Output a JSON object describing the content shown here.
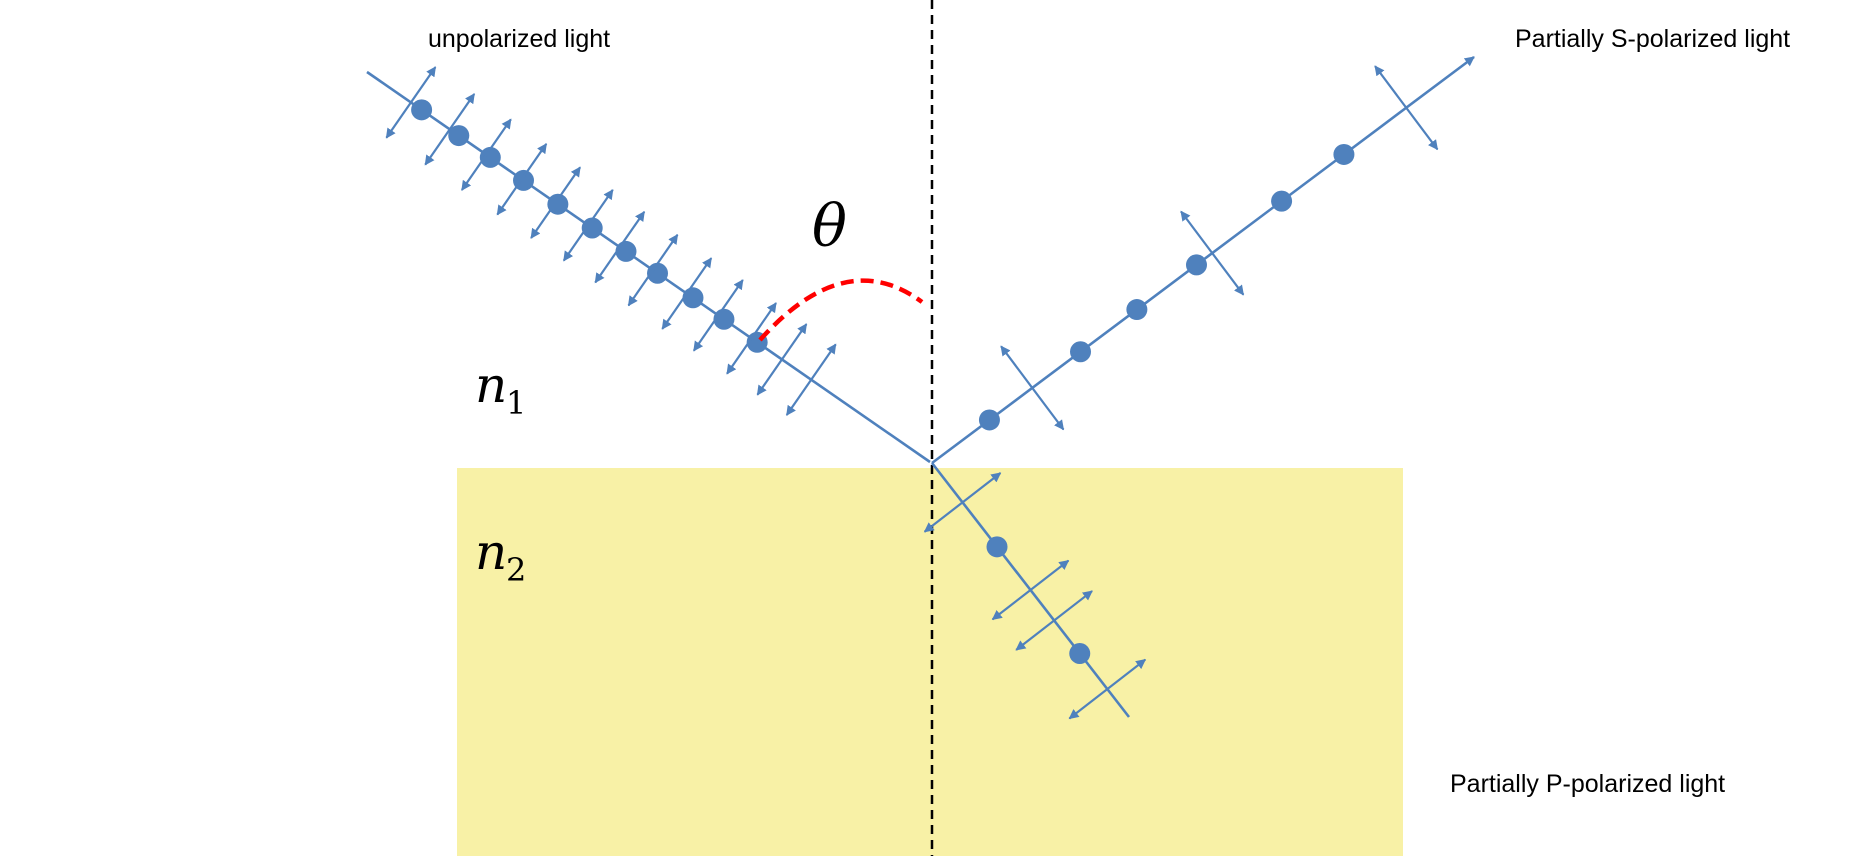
{
  "labels": {
    "incident": "unpolarized light",
    "reflected": "Partially S-polarized light",
    "refracted": "Partially P-polarized light",
    "angle": "θ",
    "medium1_symbol": "n",
    "medium1_index": "1",
    "medium2_symbol": "n",
    "medium2_index": "2"
  },
  "colors": {
    "ray": "#4F81BD",
    "medium2_fill": "#F8F1A6",
    "normal_line": "#000000",
    "angle_arc": "#FF0000",
    "angle_label": "#FF0000"
  },
  "icons": {
    "dot": "s-polarization-dot",
    "double_arrow": "p-polarization-double-arrow"
  }
}
